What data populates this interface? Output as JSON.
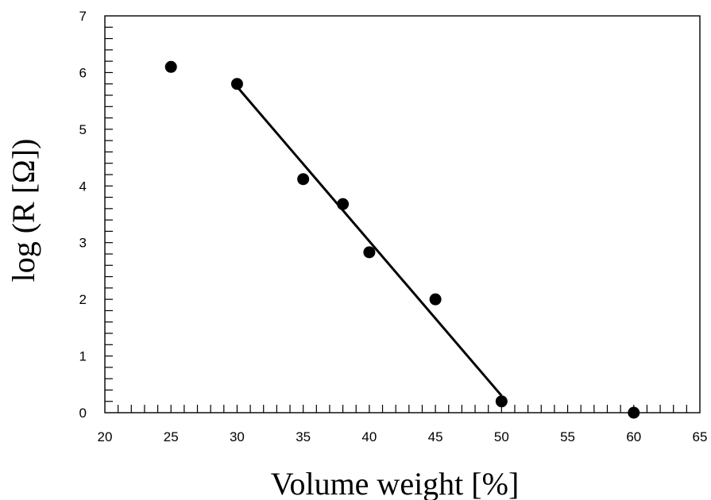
{
  "chart_data": {
    "type": "scatter",
    "title": "",
    "xlabel": "Volume weight [%]",
    "ylabel": "log (R [Ω])",
    "xlim": [
      20,
      65
    ],
    "ylim": [
      0,
      7
    ],
    "x_ticks": [
      20,
      25,
      30,
      35,
      40,
      45,
      50,
      55,
      60,
      65
    ],
    "y_ticks": [
      0,
      1,
      2,
      3,
      4,
      5,
      6,
      7
    ],
    "grid": false,
    "legend": "none",
    "series": [
      {
        "marker": "filled-circle",
        "color": "#000000",
        "x": [
          25,
          30,
          35,
          38,
          40,
          45,
          50,
          60
        ],
        "y": [
          6.1,
          5.8,
          4.12,
          3.68,
          2.83,
          2.0,
          0.2,
          0.0
        ]
      }
    ],
    "fit_line": {
      "color": "#000000",
      "x": [
        30,
        50
      ],
      "y": [
        5.75,
        0.3
      ]
    }
  }
}
